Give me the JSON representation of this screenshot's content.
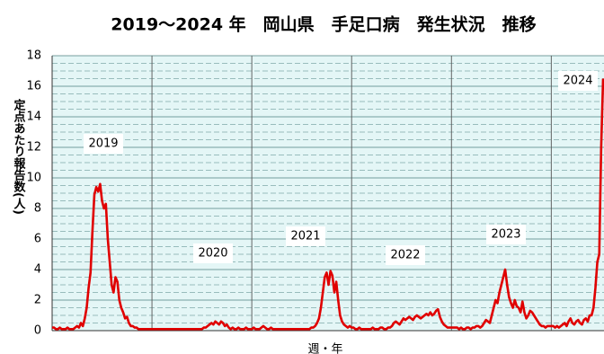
{
  "chart_data": {
    "type": "line",
    "title": "2019～2024 年　岡山県　手足口病　発生状況　推移",
    "y_label": "定点あたり報告数(人)",
    "x_label": "週・年",
    "annotations": [
      "2019",
      "2020",
      "2021",
      "2022",
      "2023",
      "2024"
    ],
    "xlim": [
      0,
      287
    ],
    "xticks": [
      52,
      104,
      156,
      208,
      260
    ],
    "ylim": [
      0,
      18
    ],
    "yticks": [
      0,
      2,
      4,
      6,
      8,
      10,
      12,
      14,
      16,
      18
    ],
    "grid": true,
    "color": "#e00000",
    "values": [
      0.2,
      0.2,
      0.1,
      0.1,
      0.2,
      0.1,
      0.1,
      0.1,
      0.2,
      0.1,
      0.1,
      0.1,
      0.2,
      0.3,
      0.2,
      0.5,
      0.3,
      0.8,
      1.5,
      2.8,
      3.8,
      6.5,
      8.9,
      9.4,
      9.1,
      9.6,
      8.5,
      8.0,
      8.3,
      6.0,
      4.5,
      3.0,
      2.5,
      3.5,
      3.2,
      2.0,
      1.5,
      1.2,
      0.8,
      0.9,
      0.5,
      0.3,
      0.3,
      0.2,
      0.2,
      0.1,
      0.1,
      0.1,
      0.1,
      0.1,
      0.1,
      0.1,
      0.1,
      0.1,
      0.1,
      0.1,
      0.1,
      0.1,
      0.1,
      0.1,
      0.1,
      0.1,
      0.1,
      0.1,
      0.1,
      0.1,
      0.1,
      0.1,
      0.1,
      0.1,
      0.1,
      0.1,
      0.1,
      0.1,
      0.1,
      0.1,
      0.1,
      0.1,
      0.1,
      0.2,
      0.2,
      0.3,
      0.4,
      0.5,
      0.4,
      0.6,
      0.5,
      0.4,
      0.6,
      0.5,
      0.3,
      0.4,
      0.2,
      0.1,
      0.2,
      0.1,
      0.1,
      0.2,
      0.1,
      0.1,
      0.1,
      0.2,
      0.1,
      0.1,
      0.1,
      0.2,
      0.1,
      0.1,
      0.1,
      0.2,
      0.3,
      0.2,
      0.1,
      0.1,
      0.2,
      0.1,
      0.1,
      0.1,
      0.1,
      0.1,
      0.1,
      0.1,
      0.1,
      0.1,
      0.1,
      0.1,
      0.1,
      0.1,
      0.1,
      0.1,
      0.1,
      0.1,
      0.1,
      0.1,
      0.1,
      0.2,
      0.2,
      0.3,
      0.5,
      0.8,
      1.5,
      2.5,
      3.5,
      3.8,
      3.0,
      3.9,
      3.6,
      2.5,
      3.2,
      2.0,
      1.0,
      0.6,
      0.4,
      0.3,
      0.2,
      0.3,
      0.2,
      0.2,
      0.1,
      0.1,
      0.2,
      0.1,
      0.1,
      0.1,
      0.1,
      0.1,
      0.1,
      0.2,
      0.1,
      0.1,
      0.1,
      0.2,
      0.2,
      0.1,
      0.1,
      0.2,
      0.2,
      0.3,
      0.5,
      0.6,
      0.5,
      0.4,
      0.6,
      0.8,
      0.7,
      0.8,
      0.9,
      0.8,
      0.7,
      0.9,
      1.0,
      0.9,
      0.8,
      0.9,
      1.0,
      1.1,
      1.0,
      1.2,
      1.0,
      1.1,
      1.3,
      1.4,
      0.9,
      0.6,
      0.4,
      0.3,
      0.2,
      0.2,
      0.2,
      0.2,
      0.2,
      0.2,
      0.1,
      0.2,
      0.1,
      0.1,
      0.2,
      0.2,
      0.1,
      0.2,
      0.2,
      0.3,
      0.3,
      0.2,
      0.3,
      0.5,
      0.7,
      0.6,
      0.5,
      1.0,
      1.5,
      2.0,
      1.8,
      2.5,
      3.0,
      3.5,
      4.0,
      3.0,
      2.2,
      1.8,
      1.5,
      2.0,
      1.6,
      1.5,
      1.2,
      1.9,
      1.2,
      0.8,
      1.0,
      1.3,
      1.2,
      1.0,
      0.8,
      0.6,
      0.4,
      0.3,
      0.3,
      0.2,
      0.3,
      0.3,
      0.3,
      0.3,
      0.2,
      0.3,
      0.2,
      0.3,
      0.4,
      0.5,
      0.3,
      0.6,
      0.8,
      0.5,
      0.4,
      0.6,
      0.7,
      0.5,
      0.4,
      0.7,
      0.8,
      0.6,
      1.0,
      1.0,
      1.5,
      2.8,
      4.5,
      5.0,
      12.0,
      16.5
    ]
  }
}
